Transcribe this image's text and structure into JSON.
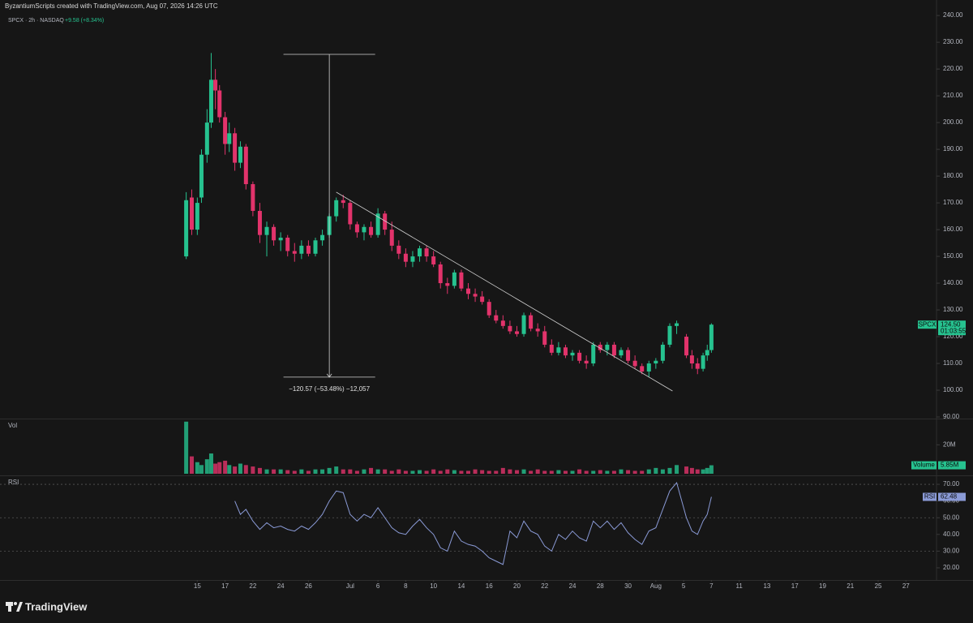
{
  "header": {
    "credit": "ByzantiumScripts created with TradingView.com, Aug 07, 2026 14:26 UTC",
    "symbol": "SPCX · 2h · NASDAQ",
    "change": "+9.58 (+8.34%)"
  },
  "chart_data": [
    {
      "type": "candlestick",
      "x": [
        -0.8,
        -0.4,
        0,
        0.3,
        0.7,
        1.0,
        1.3,
        1.6,
        2.0,
        2.3,
        2.7,
        3.1,
        3.5,
        4,
        4.5,
        5,
        5.5,
        6,
        6.5,
        7,
        7.5,
        8,
        8.5,
        9,
        9.5,
        10,
        10.5,
        11,
        11.5,
        12,
        12.5,
        13,
        13.5,
        14,
        14.5,
        15,
        15.5,
        16,
        16.5,
        17,
        17.5,
        18,
        18.5,
        19,
        19.5,
        20,
        20.5,
        21,
        21.5,
        22,
        22.5,
        23,
        23.5,
        24,
        24.5,
        25,
        25.5,
        26,
        26.5,
        27,
        27.5,
        28,
        28.5,
        29,
        29.5,
        30,
        30.5,
        31,
        31.5,
        32,
        32.5,
        33,
        33.5,
        34,
        34.5,
        35.2,
        35.6,
        36,
        36.4,
        36.7,
        37
      ],
      "open": [
        150,
        172,
        160,
        172,
        188,
        200,
        216,
        212,
        202,
        192,
        196,
        185,
        191,
        177,
        167,
        158,
        161,
        156,
        157,
        152,
        151,
        154,
        151,
        156,
        158,
        165,
        171,
        170,
        162,
        159,
        161,
        158,
        166,
        160,
        154,
        151,
        148,
        150,
        153,
        150,
        147,
        140,
        139,
        144,
        138,
        136,
        135,
        133,
        128,
        126,
        124,
        122,
        121,
        128,
        123,
        122,
        117,
        114,
        116,
        113,
        114,
        111,
        110,
        117,
        115,
        117,
        113,
        115,
        111,
        109,
        107,
        110,
        111,
        117,
        124,
        120,
        113,
        110,
        108,
        113,
        115
      ],
      "high": [
        174,
        175,
        172,
        190,
        205,
        226,
        220,
        214,
        204,
        200,
        198,
        193,
        192,
        178,
        170,
        163,
        162,
        159,
        158,
        155,
        156,
        156,
        157,
        160,
        166,
        172,
        173,
        171,
        163,
        162,
        163,
        168,
        167,
        163,
        156,
        153,
        152,
        154,
        154,
        152,
        148,
        142,
        145,
        145,
        140,
        138,
        137,
        134,
        130,
        128,
        126,
        124,
        129,
        129,
        125,
        124,
        119,
        118,
        117,
        115,
        115,
        113,
        118,
        118,
        118,
        118,
        116,
        116,
        113,
        110,
        111,
        112,
        118,
        125,
        126,
        121,
        115,
        112,
        114,
        117,
        125
      ],
      "low": [
        149,
        158,
        158,
        170,
        185,
        198,
        205,
        200,
        188,
        189,
        182,
        183,
        175,
        165,
        155,
        150,
        154,
        152,
        150,
        148,
        149,
        150,
        150,
        154,
        157,
        163,
        168,
        160,
        157,
        156,
        157,
        157,
        158,
        152,
        149,
        146,
        146,
        148,
        148,
        146,
        138,
        136,
        138,
        137,
        134,
        133,
        132,
        127,
        125,
        123,
        121,
        120,
        120,
        122,
        120,
        116,
        113,
        113,
        112,
        111,
        110,
        108,
        109,
        114,
        113,
        112,
        112,
        110,
        108,
        106,
        105,
        108,
        110,
        116,
        121,
        112,
        108,
        106,
        107,
        111,
        114
      ],
      "close": [
        171,
        160,
        170,
        188,
        200,
        216,
        212,
        202,
        192,
        196,
        185,
        191,
        177,
        167,
        158,
        161,
        156,
        157,
        152,
        151,
        154,
        151,
        156,
        158,
        165,
        171,
        170,
        162,
        159,
        161,
        158,
        166,
        160,
        154,
        151,
        148,
        150,
        153,
        150,
        147,
        140,
        139,
        144,
        138,
        136,
        135,
        133,
        128,
        126,
        124,
        122,
        121,
        128,
        123,
        122,
        117,
        114,
        116,
        113,
        114,
        111,
        110,
        117,
        115,
        117,
        113,
        115,
        111,
        109,
        107,
        110,
        111,
        117,
        124,
        125,
        113,
        110,
        108,
        113,
        115,
        124.5
      ],
      "up_color": "#26c28f",
      "down_color": "#e2336b",
      "xlim": [
        -14.2,
        53.2
      ],
      "ylim": [
        89.4,
        245.8
      ],
      "yticks": [
        {
          "value": 240,
          "label": "240.00"
        },
        {
          "value": 230,
          "label": "230.00"
        },
        {
          "value": 220,
          "label": "220.00"
        },
        {
          "value": 210,
          "label": "210.00"
        },
        {
          "value": 200,
          "label": "200.00"
        },
        {
          "value": 190,
          "label": "190.00"
        },
        {
          "value": 180,
          "label": "180.00"
        },
        {
          "value": 170,
          "label": "170.00"
        },
        {
          "value": 160,
          "label": "160.00"
        },
        {
          "value": 150,
          "label": "150.00"
        },
        {
          "value": 140,
          "label": "140.00"
        },
        {
          "value": 130,
          "label": "130.00"
        },
        {
          "value": 120,
          "label": "120.00"
        },
        {
          "value": 110,
          "label": "110.00"
        },
        {
          "value": 100,
          "label": "100.00"
        },
        {
          "value": 90,
          "label": "90.00"
        }
      ],
      "price_tag": {
        "name": "SPCX",
        "value": {
          "value": 124.5,
          "label": "124.50"
        },
        "countdown": "01:03:55"
      },
      "trendline": {
        "x": [
          10.0,
          34.2
        ],
        "y": [
          174,
          99.7
        ]
      },
      "measure": {
        "x": 9.5,
        "x_range": [
          6.2,
          12.8
        ],
        "y": [
          225.5,
          104.9
        ],
        "label": "−120.57 (−53.48%) −12,057"
      }
    },
    {
      "type": "bar",
      "title": "Vol",
      "x": [
        -0.8,
        -0.4,
        0,
        0.3,
        0.7,
        1.0,
        1.3,
        1.6,
        2.0,
        2.3,
        2.7,
        3.1,
        3.5,
        4,
        4.5,
        5,
        5.5,
        6,
        6.5,
        7,
        7.5,
        8,
        8.5,
        9,
        9.5,
        10,
        10.5,
        11,
        11.5,
        12,
        12.5,
        13,
        13.5,
        14,
        14.5,
        15,
        15.5,
        16,
        16.5,
        17,
        17.5,
        18,
        18.5,
        19,
        19.5,
        20,
        20.5,
        21,
        21.5,
        22,
        22.5,
        23,
        23.5,
        24,
        24.5,
        25,
        25.5,
        26,
        26.5,
        27,
        27.5,
        28,
        28.5,
        29,
        29.5,
        30,
        30.5,
        31,
        31.5,
        32,
        32.5,
        33,
        33.5,
        34,
        34.5,
        35.2,
        35.6,
        36,
        36.4,
        36.7,
        37
      ],
      "values": [
        36,
        12,
        8,
        6,
        10,
        14,
        7,
        8,
        9,
        6,
        5,
        7,
        6,
        5,
        4,
        3,
        3,
        3,
        2.5,
        2,
        3,
        2,
        3,
        3,
        4,
        5,
        3,
        3,
        2,
        3,
        4,
        3,
        3,
        2,
        3,
        2,
        2,
        2.5,
        2,
        3,
        2,
        3,
        2.5,
        2,
        2,
        3,
        2.5,
        2,
        2,
        4,
        3,
        2.5,
        3,
        2,
        3,
        2,
        2,
        2.5,
        2,
        2,
        3,
        2,
        2,
        2.5,
        2,
        2,
        3,
        2.5,
        2,
        2,
        3,
        4,
        3,
        4,
        6,
        5,
        4,
        3,
        3,
        4,
        5.85
      ],
      "xlim": [
        -14.2,
        53.2
      ],
      "ylim": [
        0,
        37
      ],
      "yticks": [
        {
          "value": 20,
          "label": "20M"
        }
      ],
      "last": {
        "name": "Volume",
        "value": {
          "value": 5.85,
          "label": "5.85M"
        }
      }
    },
    {
      "type": "line",
      "title": "RSI",
      "color": "#8a9ad6",
      "x": [
        -0.8,
        -0.4,
        0,
        0.3,
        0.7,
        1.0,
        1.3,
        1.6,
        2.0,
        2.3,
        2.7,
        3.1,
        3.5,
        4,
        4.5,
        5,
        5.5,
        6,
        6.5,
        7,
        7.5,
        8,
        8.5,
        9,
        9.5,
        10,
        10.5,
        11,
        11.5,
        12,
        12.5,
        13,
        13.5,
        14,
        14.5,
        15,
        15.5,
        16,
        16.5,
        17,
        17.5,
        18,
        18.5,
        19,
        19.5,
        20,
        20.5,
        21,
        21.5,
        22,
        22.5,
        23,
        23.5,
        24,
        24.5,
        25,
        25.5,
        26,
        26.5,
        27,
        27.5,
        28,
        28.5,
        29,
        29.5,
        30,
        30.5,
        31,
        31.5,
        32,
        32.5,
        33,
        33.5,
        34,
        34.5,
        35.2,
        35.6,
        36,
        36.4,
        36.7,
        37
      ],
      "values": [
        null,
        null,
        null,
        null,
        null,
        null,
        null,
        null,
        null,
        null,
        60,
        52,
        55,
        48,
        43,
        47,
        44,
        45,
        43,
        42,
        45,
        43,
        47,
        52,
        60,
        66,
        65,
        52,
        48,
        52,
        50,
        56,
        50,
        44,
        41,
        40,
        45,
        49,
        44,
        40,
        32,
        30,
        42,
        36,
        34,
        33,
        30,
        26,
        24,
        22,
        42,
        38,
        48,
        42,
        40,
        33,
        30,
        40,
        37,
        42,
        38,
        36,
        48,
        44,
        48,
        43,
        47,
        41,
        37,
        34,
        42,
        44,
        55,
        66,
        71,
        50,
        42,
        40,
        48,
        52,
        62.48
      ],
      "xlim": [
        -14.2,
        53.2
      ],
      "ylim": [
        12.7,
        74.4
      ],
      "yticks": [
        {
          "value": 70,
          "label": "70.00"
        },
        {
          "value": 60,
          "label": "60.00"
        },
        {
          "value": 50,
          "label": "50.00"
        },
        {
          "value": 40,
          "label": "40.00"
        },
        {
          "value": 30,
          "label": "30.00"
        },
        {
          "value": 20,
          "label": "20.00"
        }
      ],
      "levels": [
        70,
        50,
        30
      ],
      "xticks": [
        {
          "value": 0,
          "label": "15"
        },
        {
          "value": 2,
          "label": "17"
        },
        {
          "value": 4,
          "label": "22"
        },
        {
          "value": 6,
          "label": "24"
        },
        {
          "value": 8,
          "label": "26"
        },
        {
          "value": 11,
          "label": "Jul"
        },
        {
          "value": 13,
          "label": "6"
        },
        {
          "value": 15,
          "label": "8"
        },
        {
          "value": 17,
          "label": "10"
        },
        {
          "value": 19,
          "label": "14"
        },
        {
          "value": 21,
          "label": "16"
        },
        {
          "value": 23,
          "label": "20"
        },
        {
          "value": 25,
          "label": "22"
        },
        {
          "value": 27,
          "label": "24"
        },
        {
          "value": 29,
          "label": "28"
        },
        {
          "value": 31,
          "label": "30"
        },
        {
          "value": 33,
          "label": "Aug"
        },
        {
          "value": 35,
          "label": "5"
        },
        {
          "value": 37,
          "label": "7"
        },
        {
          "value": 39,
          "label": "11"
        },
        {
          "value": 41,
          "label": "13"
        },
        {
          "value": 43,
          "label": "17"
        },
        {
          "value": 45,
          "label": "19"
        },
        {
          "value": 47,
          "label": "21"
        },
        {
          "value": 49,
          "label": "25"
        },
        {
          "value": 51,
          "label": "27"
        }
      ],
      "last": {
        "name": "RSI",
        "value": 62.48
      }
    }
  ],
  "footer": {
    "brand": "TradingView"
  }
}
